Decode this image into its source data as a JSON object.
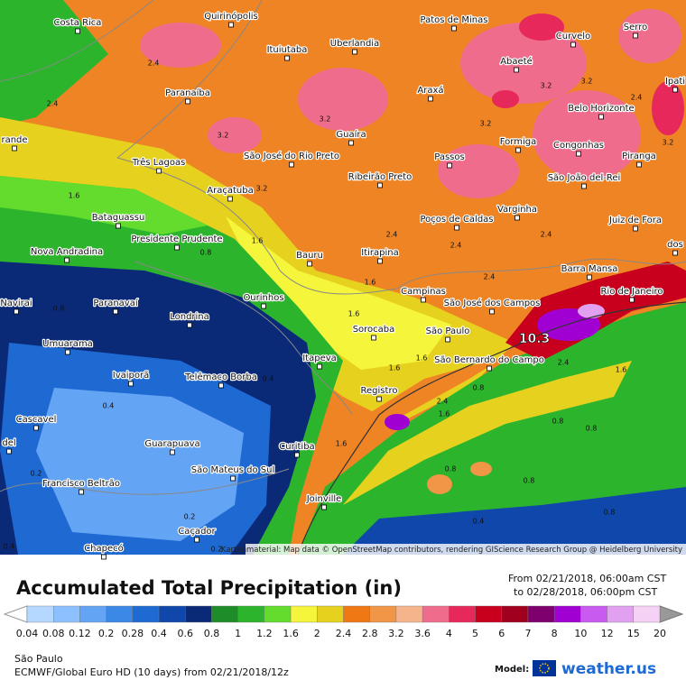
{
  "map": {
    "cities": [
      "Costa Rica",
      "Quirinópolis",
      "Patos de Minas",
      "Curvelo",
      "Serro",
      "Ituiutaba",
      "Uberlandia",
      "Abaeté",
      "Ipati",
      "Paranaíba",
      "Araxá",
      "Belo Horizonte",
      "Guaíra",
      "Formiga",
      "Congonhas",
      "rande",
      "Três Lagoas",
      "São José do Rio Preto",
      "Passos",
      "Piranga",
      "Ribeirão Preto",
      "São João del-Rei",
      "Araçatuba",
      "Varginha",
      "Bataguassu",
      "Poços de Caldas",
      "Juiz de Fora",
      "Presidente Prudente",
      "Nova Andradina",
      "Itirapina",
      "Bauru",
      "Barra Mansa",
      "Campinas",
      "São José dos Campos",
      "Rio de Janeiro",
      "Navirai",
      "Paranavaí",
      "Ourinhos",
      "Londrina",
      "Sorocaba",
      "São Paulo",
      "Umuarama",
      "São Bernardo do Campo",
      "Itapeva",
      "Ivaiporã",
      "Telêmaco Borba",
      "Registro",
      "Cascavel",
      "Curitiba",
      "del",
      "Guarapuava",
      "São Mateus do Sul",
      "Francisco Beltrão",
      "Joinville",
      "Caçador",
      "Chapecó",
      "dos"
    ],
    "contour_labels": [
      "2.4",
      "2.4",
      "3.2",
      "3.2",
      "3.2",
      "3.2",
      "2.4",
      "3.2",
      "3.2",
      "1.6",
      "3.2",
      "1.6",
      "0.8",
      "2.4",
      "2.4",
      "2.4",
      "2.4",
      "1.6",
      "1.6",
      "0.8",
      "1.6",
      "1.6",
      "2.4",
      "1.6",
      "0.8",
      "2.4",
      "1.6",
      "0.8",
      "0.8",
      "0.8",
      "0.8",
      "0.8",
      "0.4",
      "1.6",
      "0.4",
      "0.4",
      "0.2",
      "0.2",
      "0.2",
      "0.4",
      "10.3"
    ],
    "attribution": "Kartenmaterial: Map data © OpenStreetMap contributors, rendering GIScience Research Group @ Heidelberg University"
  },
  "legend": {
    "title": "Accumulated Total Precipitation (in)",
    "period_from": "From 02/21/2018, 06:00am CST",
    "period_to": "to 02/28/2018, 06:00pm CST",
    "levels": [
      "0.04",
      "0.08",
      "0.12",
      "0.2",
      "0.28",
      "0.4",
      "0.6",
      "0.8",
      "1",
      "1.2",
      "1.6",
      "2",
      "2.4",
      "2.8",
      "3.2",
      "3.6",
      "4",
      "5",
      "6",
      "7",
      "8",
      "10",
      "12",
      "15",
      "20"
    ],
    "colors": [
      "#b4d8ff",
      "#8cc0ff",
      "#64a4f5",
      "#3c88e6",
      "#1e6ad2",
      "#0f48aa",
      "#0a2a78",
      "#1e8c28",
      "#2db42d",
      "#64dc2d",
      "#f5f53c",
      "#e6d21e",
      "#f07814",
      "#f09646",
      "#f5b48c",
      "#f06c8c",
      "#e6285a",
      "#c8001e",
      "#a0001e",
      "#7d006e",
      "#a000d2",
      "#c85af0",
      "#e1a0f0",
      "#f5d2f5"
    ]
  },
  "footer": {
    "location": "São Paulo",
    "model_run": "ECMWF/Global Euro HD (10 days) from 02/21/2018/12z",
    "model_label": "Model:",
    "brand": "weather.us"
  }
}
